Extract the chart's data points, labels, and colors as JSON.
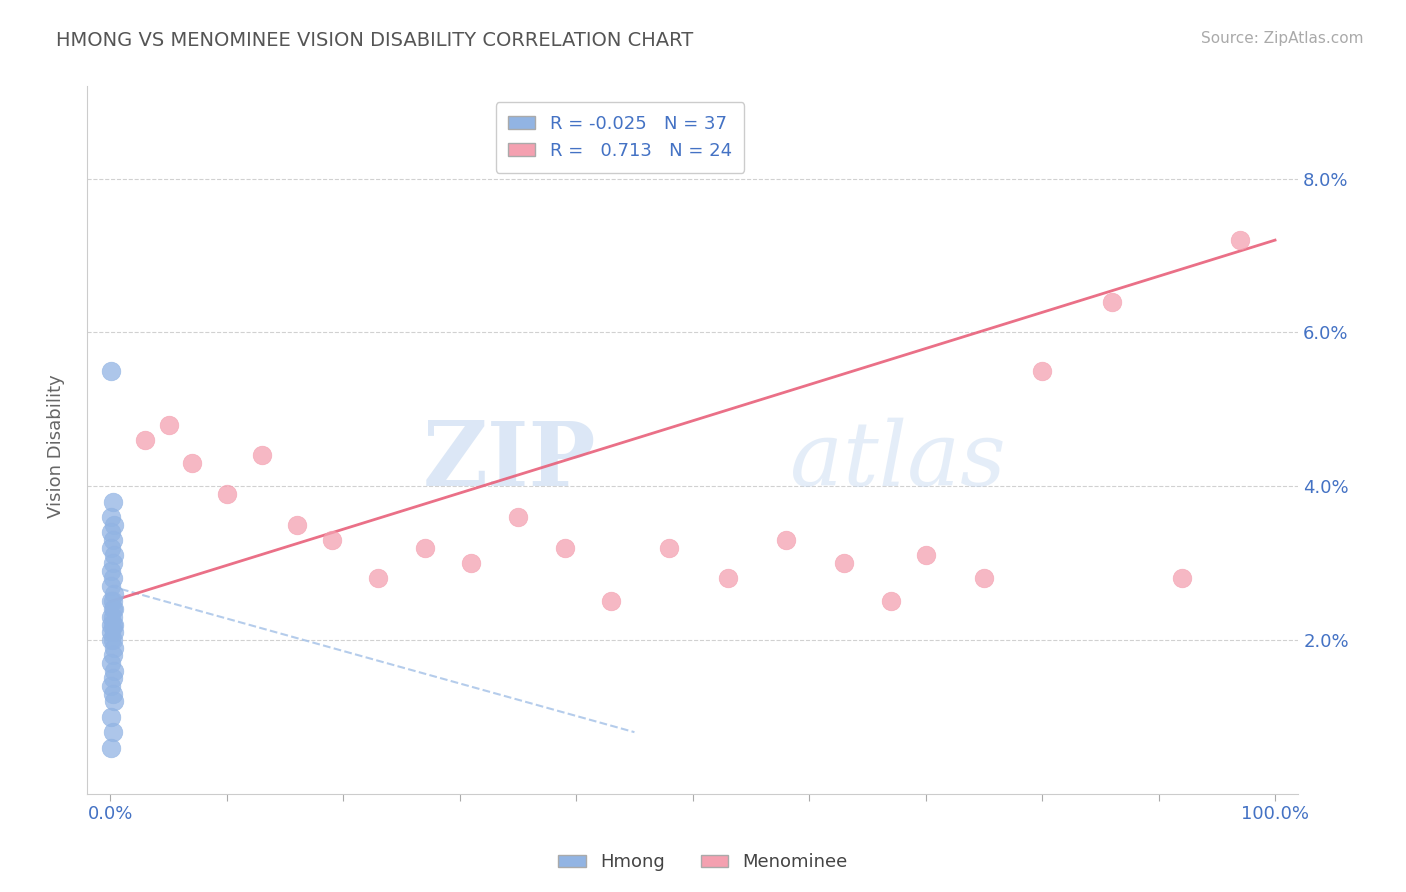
{
  "title": "HMONG VS MENOMINEE VISION DISABILITY CORRELATION CHART",
  "source": "Source: ZipAtlas.com",
  "ylabel": "Vision Disability",
  "xlim": [
    -0.02,
    1.02
  ],
  "ylim": [
    0.0,
    0.092
  ],
  "yticks": [
    0.02,
    0.04,
    0.06,
    0.08
  ],
  "ytick_labels": [
    "2.0%",
    "4.0%",
    "6.0%",
    "8.0%"
  ],
  "xticks": [
    0.0,
    0.1,
    0.2,
    0.3,
    0.4,
    0.5,
    0.6,
    0.7,
    0.8,
    0.9,
    1.0
  ],
  "xtick_labels": [
    "0.0%",
    "",
    "",
    "",
    "",
    "",
    "",
    "",
    "",
    "",
    "100.0%"
  ],
  "hmong_R": -0.025,
  "hmong_N": 37,
  "menominee_R": 0.713,
  "menominee_N": 24,
  "hmong_color": "#92b4e3",
  "menominee_color": "#f4a0b0",
  "hmong_line_color": "#a8c4e8",
  "menominee_line_color": "#e8607a",
  "background_color": "#ffffff",
  "title_color": "#555555",
  "grid_color": "#cccccc",
  "watermark_color": "#dde8f5",
  "hmong_x": [
    0.001,
    0.002,
    0.001,
    0.003,
    0.001,
    0.002,
    0.001,
    0.003,
    0.002,
    0.001,
    0.002,
    0.001,
    0.003,
    0.002,
    0.001,
    0.003,
    0.002,
    0.001,
    0.002,
    0.003,
    0.001,
    0.002,
    0.003,
    0.001,
    0.002,
    0.001,
    0.003,
    0.002,
    0.001,
    0.003,
    0.002,
    0.001,
    0.002,
    0.003,
    0.001,
    0.002,
    0.001
  ],
  "hmong_y": [
    0.055,
    0.038,
    0.036,
    0.035,
    0.034,
    0.033,
    0.032,
    0.031,
    0.03,
    0.029,
    0.028,
    0.027,
    0.026,
    0.025,
    0.025,
    0.024,
    0.024,
    0.023,
    0.023,
    0.022,
    0.022,
    0.022,
    0.021,
    0.021,
    0.02,
    0.02,
    0.019,
    0.018,
    0.017,
    0.016,
    0.015,
    0.014,
    0.013,
    0.012,
    0.01,
    0.008,
    0.006
  ],
  "menominee_x": [
    0.03,
    0.05,
    0.07,
    0.1,
    0.13,
    0.16,
    0.19,
    0.23,
    0.27,
    0.31,
    0.35,
    0.39,
    0.43,
    0.48,
    0.53,
    0.58,
    0.63,
    0.67,
    0.7,
    0.75,
    0.8,
    0.86,
    0.92,
    0.97
  ],
  "menominee_y": [
    0.046,
    0.048,
    0.043,
    0.039,
    0.044,
    0.035,
    0.033,
    0.028,
    0.032,
    0.03,
    0.036,
    0.032,
    0.025,
    0.032,
    0.028,
    0.033,
    0.03,
    0.025,
    0.031,
    0.028,
    0.055,
    0.064,
    0.028,
    0.072
  ],
  "hmong_trendline_x": [
    0.0,
    0.45
  ],
  "hmong_trendline_y": [
    0.027,
    0.008
  ],
  "menominee_trendline_x": [
    0.0,
    1.0
  ],
  "menominee_trendline_y": [
    0.025,
    0.072
  ]
}
